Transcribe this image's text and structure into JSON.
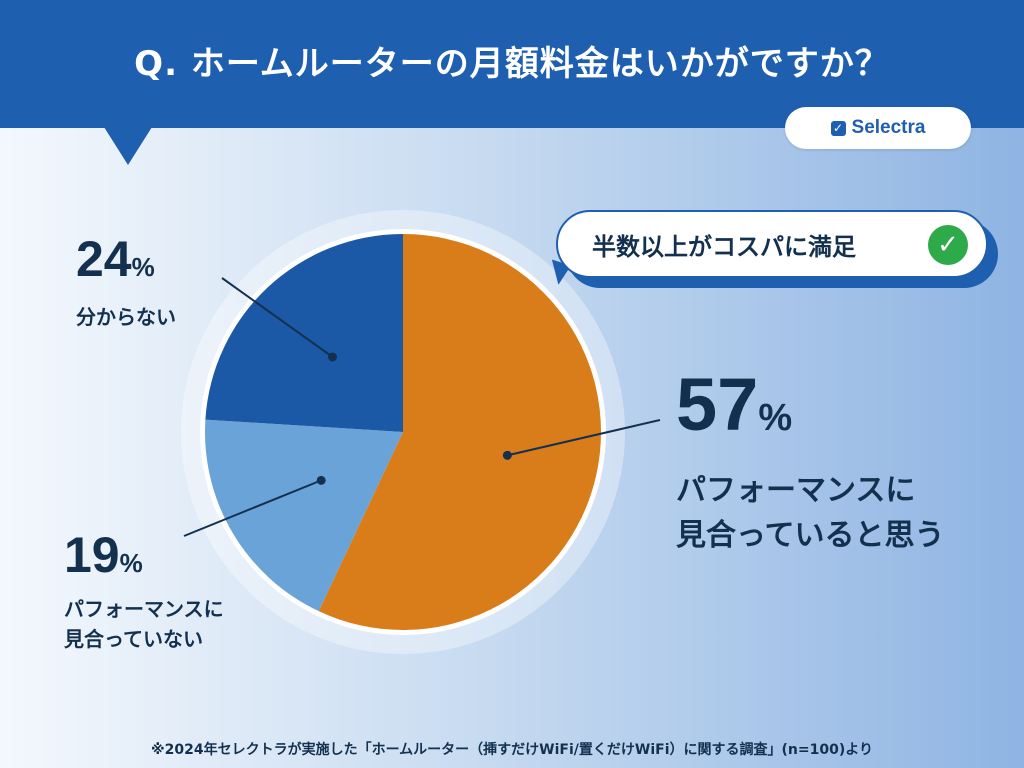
{
  "header": {
    "title": "Q. ホームルーターの月額料金はいかがですか？"
  },
  "brand": {
    "name": "Selectra",
    "icon": "checkbox-icon"
  },
  "callout": {
    "text": "半数以上がコスパに満足",
    "icon": "check-circle-icon"
  },
  "chart_data": {
    "type": "pie",
    "slices": [
      {
        "label_lines": [
          "パフォーマンスに",
          "見合っていると思う"
        ],
        "value": 57,
        "color": "#d97d1a"
      },
      {
        "label_lines": [
          "パフォーマンスに",
          "見合っていない"
        ],
        "value": 19,
        "color": "#6aa3d8"
      },
      {
        "label_lines": [
          "分からない"
        ],
        "value": 24,
        "color": "#1b58a6"
      }
    ],
    "start": "12 o'clock",
    "direction": "clockwise",
    "value_suffix": "%"
  },
  "labels": {
    "s57": {
      "num": "57",
      "sign": "%",
      "line1": "パフォーマンスに",
      "line2": "見合っていると思う"
    },
    "s19": {
      "num": "19",
      "sign": "%",
      "line1": "パフォーマンスに",
      "line2": "見合っていない"
    },
    "s24": {
      "num": "24",
      "sign": "%",
      "line1": "分からない"
    }
  },
  "footnote": "※2024年セレクトラが実施した「ホームルーター（挿すだけWiFi/置くだけWiFi）に関する調査」(n=100)より"
}
